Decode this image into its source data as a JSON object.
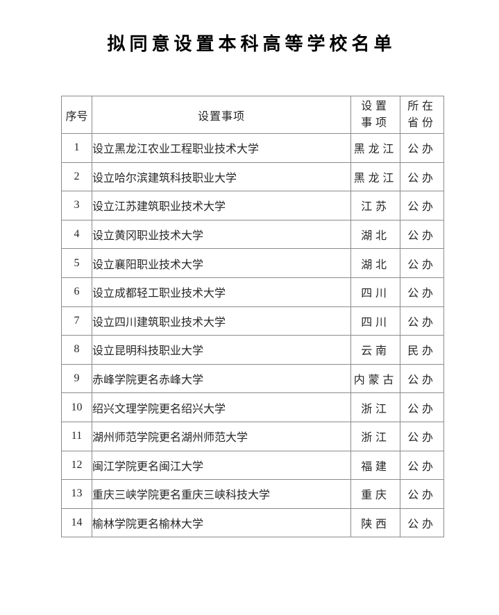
{
  "page": {
    "title": "拟同意设置本科高等学校名单"
  },
  "colors": {
    "background": "#ffffff",
    "text": "#262626",
    "title_text": "#000000",
    "table_border": "#8a8a8a"
  },
  "table": {
    "header": {
      "no": "序号",
      "item": "设置事项",
      "province": "设置\n事项",
      "type": "所在\n省份"
    },
    "rows": [
      {
        "no": "1",
        "item": "设立黑龙江农业工程职业技术大学",
        "province": "黑龙江",
        "type": "公办"
      },
      {
        "no": "2",
        "item": "设立哈尔滨建筑科技职业大学",
        "province": "黑龙江",
        "type": "公办"
      },
      {
        "no": "3",
        "item": "设立江苏建筑职业技术大学",
        "province": "江苏",
        "type": "公办"
      },
      {
        "no": "4",
        "item": "设立黄冈职业技术大学",
        "province": "湖北",
        "type": "公办"
      },
      {
        "no": "5",
        "item": "设立襄阳职业技术大学",
        "province": "湖北",
        "type": "公办"
      },
      {
        "no": "6",
        "item": "设立成都轻工职业技术大学",
        "province": "四川",
        "type": "公办"
      },
      {
        "no": "7",
        "item": "设立四川建筑职业技术大学",
        "province": "四川",
        "type": "公办"
      },
      {
        "no": "8",
        "item": "设立昆明科技职业大学",
        "province": "云南",
        "type": "民办"
      },
      {
        "no": "9",
        "item": "赤峰学院更名赤峰大学",
        "province": "内蒙古",
        "type": "公办"
      },
      {
        "no": "10",
        "item": "绍兴文理学院更名绍兴大学",
        "province": "浙江",
        "type": "公办"
      },
      {
        "no": "11",
        "item": "湖州师范学院更名湖州师范大学",
        "province": "浙江",
        "type": "公办"
      },
      {
        "no": "12",
        "item": "闽江学院更名闽江大学",
        "province": "福建",
        "type": "公办"
      },
      {
        "no": "13",
        "item": "重庆三峡学院更名重庆三峡科技大学",
        "province": "重庆",
        "type": "公办"
      },
      {
        "no": "14",
        "item": "榆林学院更名榆林大学",
        "province": "陕西",
        "type": "公办"
      }
    ]
  }
}
